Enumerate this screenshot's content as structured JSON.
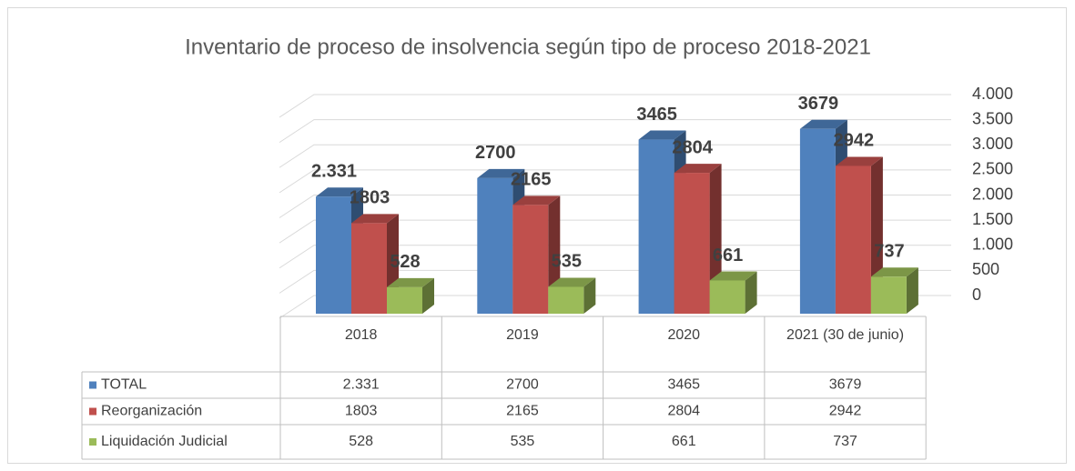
{
  "chart_data": {
    "type": "bar3d",
    "title": "Inventario de proceso de insolvencia según tipo de proceso 2018-2021",
    "categories": [
      "2018",
      "2019",
      "2020",
      "2021 (30 de junio)"
    ],
    "series": [
      {
        "name": "TOTAL",
        "color": "#4f81bd",
        "values": [
          2331,
          2700,
          3465,
          3679
        ],
        "value_labels": [
          "2.331",
          "2700",
          "3465",
          "3679"
        ]
      },
      {
        "name": "Reorganización",
        "color": "#c0504d",
        "values": [
          1803,
          2165,
          2804,
          2942
        ]
      },
      {
        "name": "Liquidación Judicial",
        "color": "#9bbb59",
        "values": [
          528,
          535,
          661,
          737
        ]
      }
    ],
    "ylim": [
      0,
      4000
    ],
    "yticks": [
      0,
      500,
      {
        "value": 1000,
        "label": "1.000"
      },
      {
        "value": 1500,
        "label": "1.500"
      },
      {
        "value": 2000,
        "label": "2.000"
      },
      {
        "value": 2500,
        "label": "2.500"
      },
      {
        "value": 3000,
        "label": "3.000"
      },
      {
        "value": 3500,
        "label": "3.500"
      },
      {
        "value": 4000,
        "label": "4.000"
      }
    ],
    "grid": true
  }
}
